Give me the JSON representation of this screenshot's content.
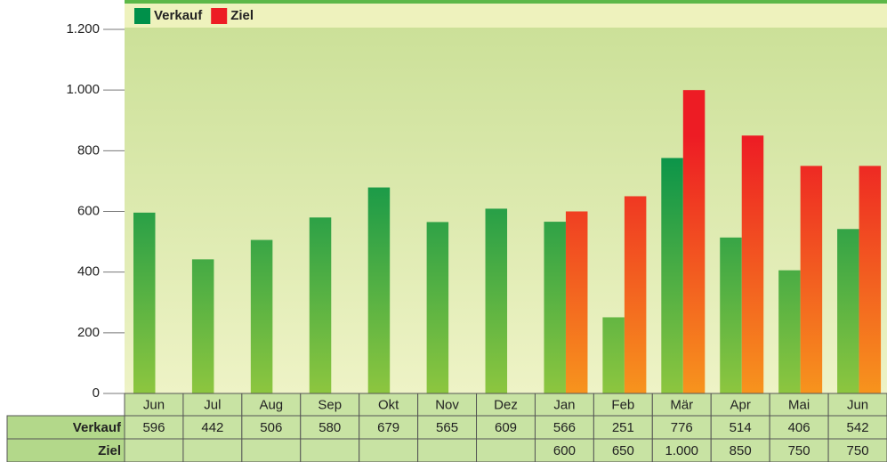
{
  "chart_data": {
    "type": "bar",
    "categories": [
      "Jun",
      "Jul",
      "Aug",
      "Sep",
      "Okt",
      "Nov",
      "Dez",
      "Jan",
      "Feb",
      "Mär",
      "Apr",
      "Mai",
      "Jun"
    ],
    "series": [
      {
        "name": "Verkauf",
        "color": "#00904a",
        "values": [
          596,
          442,
          506,
          580,
          679,
          565,
          609,
          566,
          251,
          776,
          514,
          406,
          542
        ]
      },
      {
        "name": "Ziel",
        "color": "#ed1c24",
        "values": [
          null,
          null,
          null,
          null,
          null,
          null,
          null,
          600,
          650,
          1000,
          850,
          750,
          750
        ],
        "value_labels": [
          null,
          null,
          null,
          null,
          null,
          null,
          null,
          "600",
          "650",
          "1.000",
          "850",
          "750",
          "750"
        ]
      }
    ],
    "ylim": [
      0,
      1200
    ],
    "yticks": [
      0,
      200,
      400,
      600,
      800,
      {
        "value": 1000,
        "label": "1.000"
      },
      {
        "value": 1200,
        "label": "1.200"
      }
    ],
    "legend": "top"
  }
}
